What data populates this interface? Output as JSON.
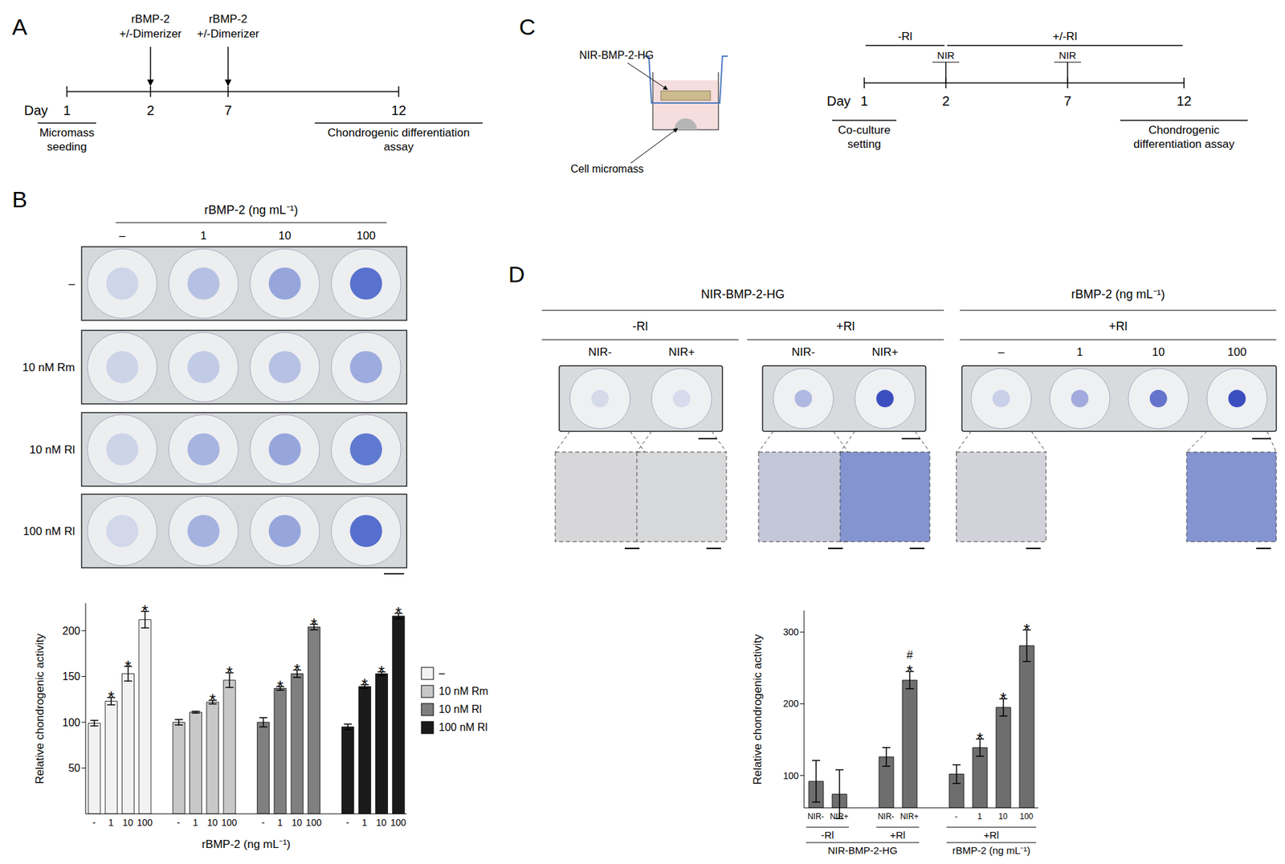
{
  "panels": {
    "A": {
      "label": "A",
      "timeline": {
        "axis_label": "Day",
        "days": [
          1,
          2,
          7,
          12
        ],
        "treatments": [
          {
            "day": 2,
            "text": [
              "rBMP-2",
              "+/-Dimerizer"
            ]
          },
          {
            "day": 7,
            "text": [
              "rBMP-2",
              "+/-Dimerizer"
            ]
          }
        ],
        "events": [
          {
            "day": 1,
            "text": [
              "Micromass",
              "seeding"
            ]
          },
          {
            "day": 12,
            "text": [
              "Chondrogenic differentiation",
              "assay"
            ]
          }
        ]
      }
    },
    "B": {
      "label": "B",
      "plate": {
        "column_title": "rBMP-2 (ng mL⁻¹)",
        "columns": [
          "–",
          "1",
          "10",
          "100"
        ],
        "rows": [
          "–",
          "10 nM Rm",
          "10 nM Rl",
          "100 nM Rl"
        ]
      }
    },
    "C": {
      "label": "C",
      "insert_labels": {
        "hydrogel": "NIR-BMP-2-HG",
        "cells": "Cell micromass"
      },
      "timeline": {
        "axis_label": "Day",
        "days": [
          1,
          2,
          7,
          12
        ],
        "phases": [
          {
            "from": 1,
            "to": 2,
            "text": "-Rl"
          },
          {
            "from": 2,
            "to": 12,
            "text": "+/-Rl"
          }
        ],
        "pulses": [
          {
            "day": 2,
            "text": "NIR"
          },
          {
            "day": 7,
            "text": "NIR"
          }
        ],
        "events": [
          {
            "day": 1,
            "text": [
              "Co-culture",
              "setting"
            ]
          },
          {
            "day": 12,
            "text": [
              "Chondrogenic",
              "differentiation assay"
            ]
          }
        ]
      }
    },
    "D": {
      "label": "D",
      "plate": {
        "groups": [
          {
            "title": "NIR-BMP-2-HG",
            "subgroups": [
              {
                "title": "-Rl",
                "columns": [
                  "NIR-",
                  "NIR+"
                ]
              },
              {
                "title": "+Rl",
                "columns": [
                  "NIR-",
                  "NIR+"
                ]
              }
            ]
          },
          {
            "title": "rBMP-2 (ng mL⁻¹)",
            "subgroups": [
              {
                "title": "+Rl",
                "columns": [
                  "–",
                  "1",
                  "10",
                  "100"
                ]
              }
            ]
          }
        ]
      }
    }
  },
  "chart_data": [
    {
      "type": "bar",
      "xlabel": "rBMP-2 (ng mL⁻¹)",
      "ylabel": "Relative chondrogenic activity",
      "categories": [
        "-",
        "1",
        "10",
        "100",
        null,
        "-",
        "1",
        "10",
        "100",
        null,
        "-",
        "1",
        "10",
        "100",
        null,
        "-",
        "1",
        "10",
        "100"
      ],
      "ylim": [
        0,
        230
      ],
      "yticks": [
        50,
        100,
        150,
        200
      ],
      "legend": "right",
      "series": [
        {
          "name": "–",
          "color": "#f2f2f2",
          "values": [
            99,
            123,
            153,
            212,
            null,
            null,
            null,
            null,
            null,
            null,
            null,
            null,
            null,
            null,
            null,
            null,
            null,
            null,
            null
          ],
          "errors": [
            3,
            4,
            8,
            9,
            null,
            null,
            null,
            null,
            null,
            null,
            null,
            null,
            null,
            null,
            null,
            null,
            null,
            null,
            null
          ],
          "significance": [
            null,
            [
              "*"
            ],
            [
              "*"
            ],
            [
              "*"
            ],
            null,
            null,
            null,
            null,
            null,
            null,
            null,
            null,
            null,
            null,
            null,
            null,
            null,
            null,
            null
          ]
        },
        {
          "name": "10 nM Rm",
          "color": "#c8c8c8",
          "values": [
            null,
            null,
            null,
            null,
            null,
            100,
            111,
            122,
            146,
            null,
            null,
            null,
            null,
            null,
            null,
            null,
            null,
            null,
            null
          ],
          "errors": [
            null,
            null,
            null,
            null,
            null,
            3,
            1,
            2,
            8,
            null,
            null,
            null,
            null,
            null,
            null,
            null,
            null,
            null,
            null
          ],
          "significance": [
            null,
            null,
            null,
            null,
            null,
            null,
            null,
            [
              "*"
            ],
            [
              "*"
            ],
            null,
            null,
            null,
            null,
            null,
            null,
            null,
            null,
            null,
            null
          ]
        },
        {
          "name": "10 nM Rl",
          "color": "#7f7f7f",
          "values": [
            null,
            null,
            null,
            null,
            null,
            null,
            null,
            null,
            null,
            null,
            100,
            137,
            153,
            204,
            null,
            null,
            null,
            null,
            null
          ],
          "errors": [
            null,
            null,
            null,
            null,
            null,
            null,
            null,
            null,
            null,
            null,
            5,
            2,
            4,
            3,
            null,
            null,
            null,
            null,
            null
          ],
          "significance": [
            null,
            null,
            null,
            null,
            null,
            null,
            null,
            null,
            null,
            null,
            null,
            [
              "*"
            ],
            [
              "*"
            ],
            [
              "*"
            ],
            null,
            null,
            null,
            null,
            null
          ]
        },
        {
          "name": "100 nM Rl",
          "color": "#1a1a1a",
          "values": [
            null,
            null,
            null,
            null,
            null,
            null,
            null,
            null,
            null,
            null,
            null,
            null,
            null,
            null,
            null,
            95,
            139,
            153,
            216
          ],
          "errors": [
            null,
            null,
            null,
            null,
            null,
            null,
            null,
            null,
            null,
            null,
            null,
            null,
            null,
            null,
            null,
            3,
            2,
            2,
            3
          ],
          "significance": [
            null,
            null,
            null,
            null,
            null,
            null,
            null,
            null,
            null,
            null,
            null,
            null,
            null,
            null,
            null,
            null,
            [
              "*"
            ],
            [
              "*"
            ],
            [
              "*"
            ]
          ]
        }
      ]
    },
    {
      "type": "bar",
      "ylabel": "Relative chondrogenic activity",
      "categories": [
        "NIR-",
        "NIR+",
        null,
        "NIR-",
        "NIR+",
        null,
        "-",
        "1",
        "10",
        "100"
      ],
      "groups": [
        {
          "title": "NIR-BMP-2-HG",
          "subgroups": [
            "-Rl",
            "+Rl"
          ]
        },
        {
          "title": "rBMP-2 (ng mL⁻¹)",
          "subgroups": [
            "+Rl"
          ]
        }
      ],
      "ylim": [
        55,
        330
      ],
      "yticks": [
        100,
        200,
        300
      ],
      "series": [
        {
          "color": "#6e6e6e",
          "values": [
            92,
            74,
            null,
            126,
            233,
            null,
            102,
            139,
            195,
            281
          ],
          "errors": [
            29,
            34,
            null,
            13,
            12,
            null,
            13,
            12,
            12,
            22
          ],
          "significance": [
            null,
            null,
            null,
            null,
            [
              "#",
              "*"
            ],
            null,
            null,
            [
              "*"
            ],
            [
              "*"
            ],
            [
              "*"
            ]
          ]
        }
      ]
    }
  ]
}
